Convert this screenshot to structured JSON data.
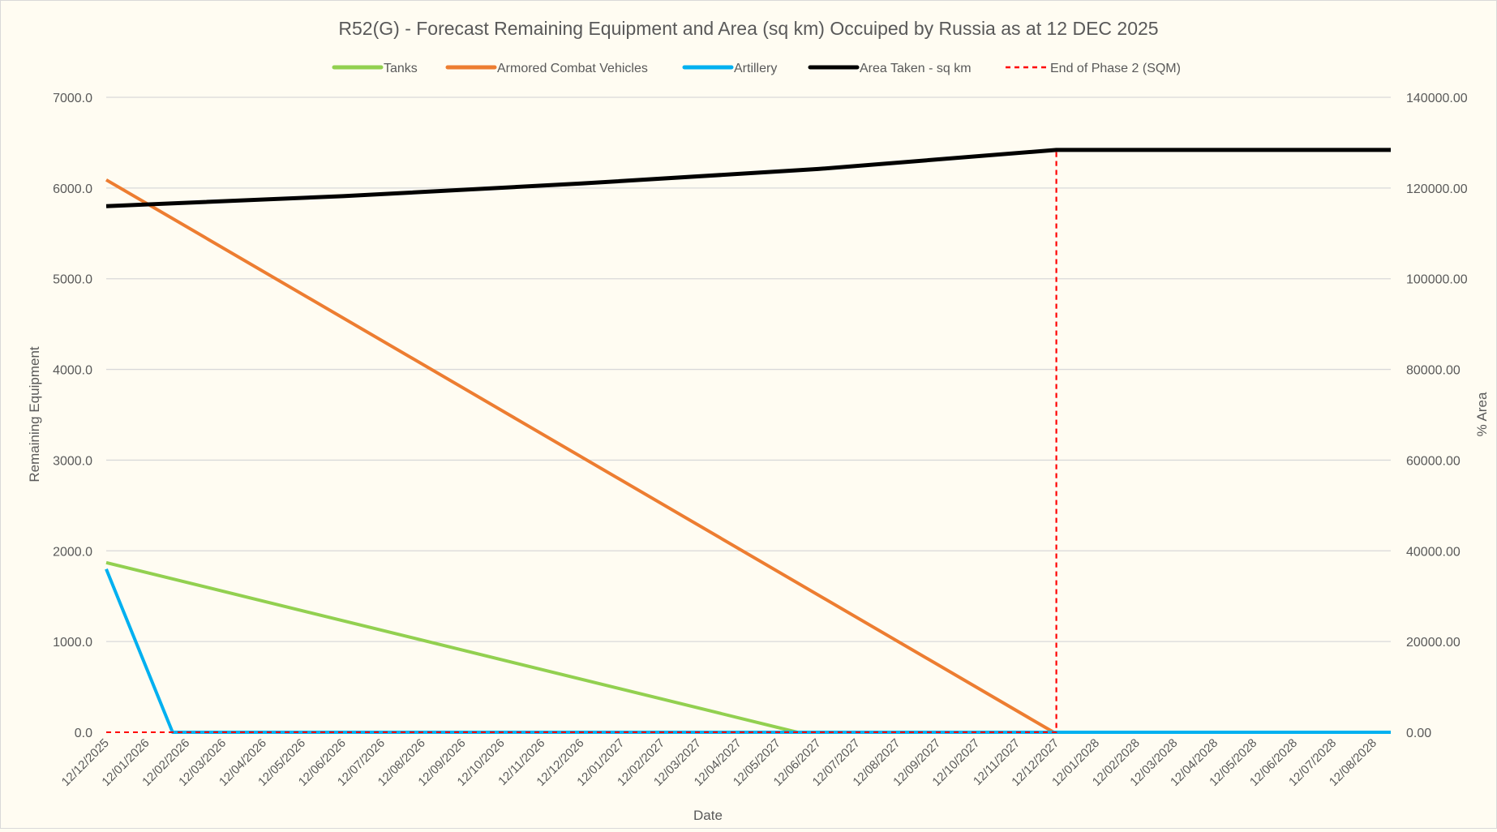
{
  "chart_data": {
    "type": "line",
    "title": "R52(G) - Forecast Remaining Equipment and Area (sq km) Occuiped by Russia as at 12 DEC 2025",
    "xlabel": "Date",
    "ylabel": "Remaining Equipment",
    "y2label": "% Area",
    "xlim": [
      "2025-12-12",
      "2028-08-25"
    ],
    "ylim": [
      0,
      7000
    ],
    "y2lim": [
      0,
      140000
    ],
    "y_ticks": [
      "0.0",
      "1000.0",
      "2000.0",
      "3000.0",
      "4000.0",
      "5000.0",
      "6000.0",
      "7000.0"
    ],
    "y2_ticks": [
      "0.00",
      "20000.00",
      "40000.00",
      "60000.00",
      "80000.00",
      "100000.00",
      "120000.00",
      "140000.00"
    ],
    "x_tick_labels": [
      "12/12/2025",
      "12/01/2026",
      "12/02/2026",
      "12/03/2026",
      "12/04/2026",
      "12/05/2026",
      "12/06/2026",
      "12/07/2026",
      "12/08/2026",
      "12/09/2026",
      "12/10/2026",
      "12/11/2026",
      "12/12/2026",
      "12/01/2027",
      "12/02/2027",
      "12/03/2027",
      "12/04/2027",
      "12/05/2027",
      "12/06/2027",
      "12/07/2027",
      "12/08/2027",
      "12/09/2027",
      "12/10/2027",
      "12/11/2027",
      "12/12/2027",
      "12/01/2028",
      "12/02/2028",
      "12/03/2028",
      "12/04/2028",
      "12/05/2028",
      "12/06/2028",
      "12/07/2028",
      "12/08/2028"
    ],
    "grid": true,
    "legend_position": "top",
    "series": [
      {
        "name": "Tanks",
        "axis": "left",
        "color": "#92d050",
        "dash": false,
        "points": [
          [
            "2025-12-12",
            1870
          ],
          [
            "2027-05-27",
            0
          ],
          [
            "2028-08-25",
            0
          ]
        ]
      },
      {
        "name": "Armored Combat Vehicles",
        "axis": "left",
        "color": "#ed7d31",
        "dash": false,
        "points": [
          [
            "2025-12-12",
            6090
          ],
          [
            "2027-12-10",
            0
          ],
          [
            "2028-08-25",
            0
          ]
        ]
      },
      {
        "name": "Artillery",
        "axis": "left",
        "color": "#00b0f0",
        "dash": false,
        "points": [
          [
            "2025-12-12",
            1800
          ],
          [
            "2026-02-01",
            0
          ],
          [
            "2028-08-25",
            0
          ]
        ]
      },
      {
        "name": "Area Taken - sq km",
        "axis": "right",
        "color": "#000000",
        "dash": false,
        "points": [
          [
            "2025-12-12",
            116000
          ],
          [
            "2026-06-12",
            118200
          ],
          [
            "2026-12-12",
            121000
          ],
          [
            "2027-06-12",
            124200
          ],
          [
            "2027-12-12",
            128400
          ],
          [
            "2028-08-25",
            128400
          ]
        ]
      },
      {
        "name": "End of Phase 2 (SQM)",
        "axis": "right",
        "color": "#ff0000",
        "dash": true,
        "points": [
          [
            "2025-12-12",
            0
          ],
          [
            "2027-12-12",
            0
          ],
          [
            "2027-12-12",
            128400
          ]
        ]
      }
    ]
  }
}
